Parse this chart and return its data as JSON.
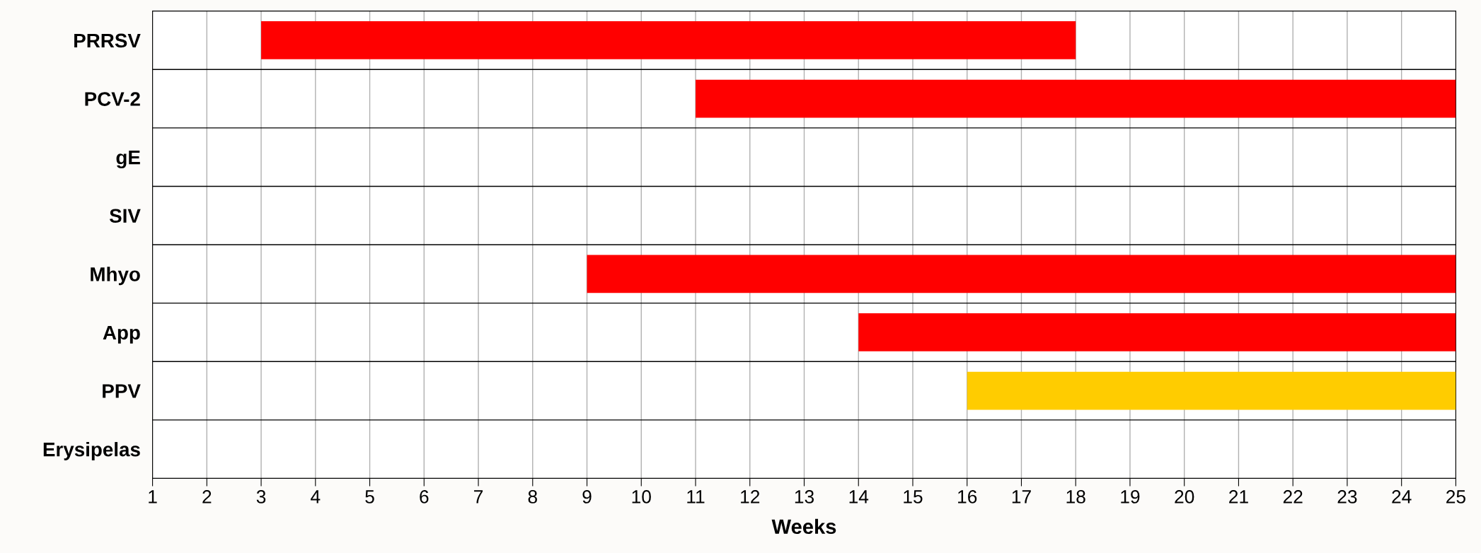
{
  "chart_data": {
    "type": "bar",
    "orientation": "horizontal",
    "xlabel": "Weeks",
    "categories": [
      "PRRSV",
      "PCV-2",
      "gE",
      "SIV",
      "Mhyo",
      "App",
      "PPV",
      "Erysipelas"
    ],
    "base": [
      3,
      11,
      null,
      null,
      9,
      14,
      16,
      null
    ],
    "values": [
      15,
      14,
      null,
      null,
      16,
      11,
      9,
      null
    ],
    "colors": [
      "#ff0000",
      "#ff0000",
      null,
      null,
      "#ff0000",
      "#ff0000",
      "#ffcc00",
      null
    ],
    "xlim": [
      1,
      25
    ],
    "xticks": [
      1,
      2,
      3,
      4,
      5,
      6,
      7,
      8,
      9,
      10,
      11,
      12,
      13,
      14,
      15,
      16,
      17,
      18,
      19,
      20,
      21,
      22,
      23,
      24,
      25
    ],
    "grid": "x"
  }
}
